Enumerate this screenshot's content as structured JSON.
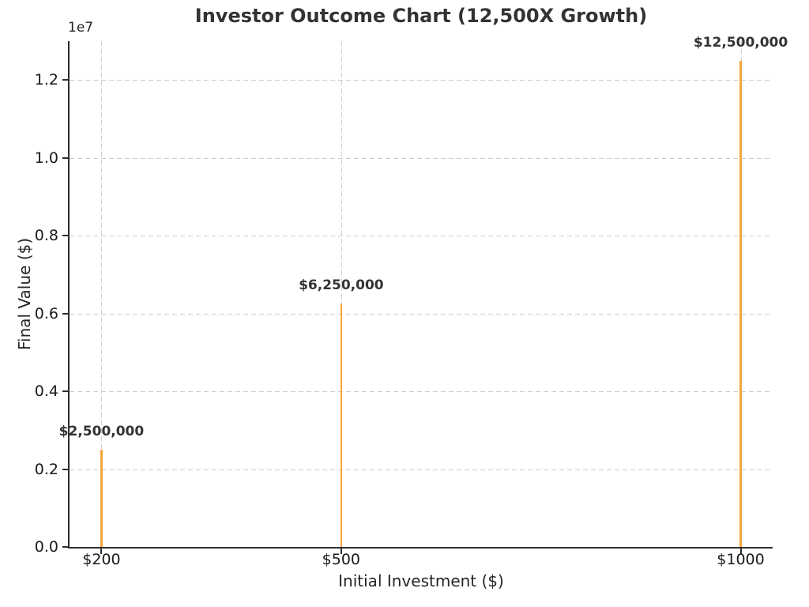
{
  "chart_data": {
    "type": "bar",
    "title": "Investor Outcome Chart (12,500X Growth)",
    "xlabel": "Initial Investment ($)",
    "ylabel": "Final Value ($)",
    "offset_text": "1e7",
    "x": [
      200,
      500,
      1000
    ],
    "x_tick_labels": [
      "$200",
      "$500",
      "$1000"
    ],
    "values": [
      2500000,
      6250000,
      12500000
    ],
    "data_labels": [
      "$2,500,000",
      "$6,250,000",
      "$12,500,000"
    ],
    "xlim": [
      160,
      1040
    ],
    "ylim": [
      0,
      13000000
    ],
    "y_ticks": [
      0,
      2000000,
      4000000,
      6000000,
      8000000,
      10000000,
      12000000
    ],
    "y_tick_labels": [
      "0.0",
      "0.2",
      "0.4",
      "0.6",
      "0.8",
      "1.0",
      "1.2"
    ],
    "grid": "dashed-both-axes",
    "legend": "none",
    "bar_color": "#f6a63c"
  },
  "colors": {
    "background": "#ffffff",
    "text": "#262626",
    "bold_text": "#333333",
    "grid": "#cdcdcd",
    "spine": "#2e2e2e",
    "bar": "#f6a63c"
  }
}
